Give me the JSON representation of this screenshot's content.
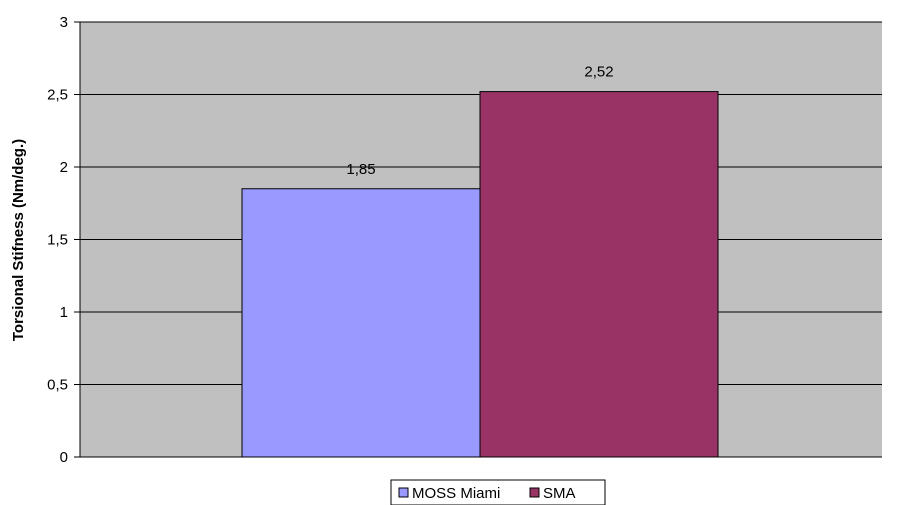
{
  "chart_data": {
    "type": "bar",
    "categories": [
      ""
    ],
    "series": [
      {
        "name": "MOSS Miami",
        "values": [
          1.85
        ],
        "color": "#9999ff",
        "label": "1,85"
      },
      {
        "name": "SMA",
        "values": [
          2.52
        ],
        "color": "#993366",
        "label": "2,52"
      }
    ],
    "title": "",
    "xlabel": "",
    "ylabel": "Torsional Stifness (Nm/deg.)",
    "ylim": [
      0,
      3
    ],
    "yticks": [
      0,
      0.5,
      1,
      1.5,
      2,
      2.5,
      3
    ],
    "ytick_labels": [
      "0",
      "0,5",
      "1",
      "1,5",
      "2",
      "2,5",
      "3"
    ],
    "grid": true,
    "legend_position": "bottom",
    "plot_background": "#c0c0c0"
  }
}
